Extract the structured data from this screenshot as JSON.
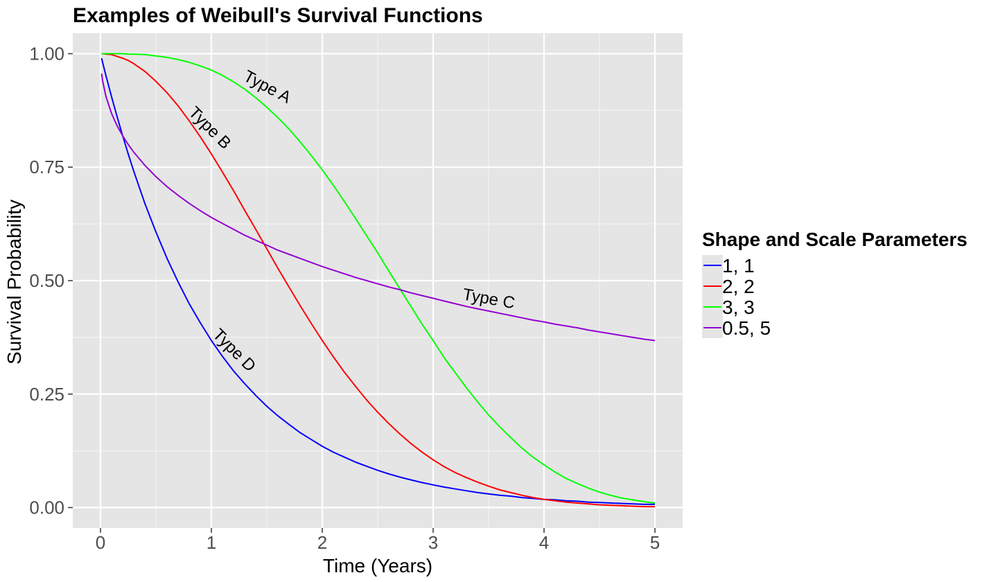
{
  "chart_data": {
    "type": "line",
    "title": "Examples of Weibull's Survival Functions",
    "xlabel": "Time (Years)",
    "ylabel": "Survival Probability",
    "xlim": [
      -0.25,
      5.25
    ],
    "ylim": [
      -0.045,
      1.045
    ],
    "x_ticks": [
      0,
      1,
      2,
      3,
      4,
      5
    ],
    "x_tick_labels": [
      "0",
      "1",
      "2",
      "3",
      "4",
      "5"
    ],
    "y_ticks": [
      0,
      0.25,
      0.5,
      0.75,
      1
    ],
    "y_tick_labels": [
      "0.00",
      "0.25",
      "0.50",
      "0.75",
      "1.00"
    ],
    "grid": true,
    "background": "#e5e5e5",
    "legend": {
      "title": "Shape and Scale Parameters",
      "placement": "right"
    },
    "x": [
      0.01,
      0.02,
      0.05,
      0.1,
      0.15,
      0.2,
      0.25,
      0.3,
      0.4,
      0.5,
      0.6,
      0.7,
      0.8,
      0.9,
      1.0,
      1.1,
      1.2,
      1.3,
      1.4,
      1.5,
      1.6,
      1.7,
      1.8,
      1.9,
      2.0,
      2.1,
      2.2,
      2.3,
      2.4,
      2.5,
      2.6,
      2.7,
      2.8,
      2.9,
      3.0,
      3.1,
      3.2,
      3.3,
      3.4,
      3.5,
      3.6,
      3.7,
      3.8,
      3.9,
      4.0,
      4.1,
      4.2,
      4.3,
      4.4,
      4.5,
      4.6,
      4.7,
      4.8,
      4.9,
      5.0
    ],
    "series": [
      {
        "name": "1, 1",
        "color": "#0000ff",
        "values": [
          0.99,
          0.98,
          0.951,
          0.905,
          0.861,
          0.819,
          0.779,
          0.741,
          0.67,
          0.607,
          0.549,
          0.497,
          0.449,
          0.407,
          0.368,
          0.333,
          0.301,
          0.273,
          0.247,
          0.223,
          0.202,
          0.183,
          0.165,
          0.15,
          0.135,
          0.122,
          0.111,
          0.1,
          0.091,
          0.082,
          0.074,
          0.067,
          0.061,
          0.055,
          0.05,
          0.045,
          0.041,
          0.037,
          0.033,
          0.03,
          0.027,
          0.025,
          0.022,
          0.02,
          0.018,
          0.017,
          0.015,
          0.014,
          0.012,
          0.011,
          0.01,
          0.009,
          0.008,
          0.007,
          0.007
        ]
      },
      {
        "name": "2, 2",
        "color": "#ff0000",
        "values": [
          1.0,
          1.0,
          0.999,
          0.998,
          0.994,
          0.99,
          0.985,
          0.978,
          0.961,
          0.939,
          0.914,
          0.885,
          0.852,
          0.817,
          0.779,
          0.739,
          0.698,
          0.655,
          0.613,
          0.57,
          0.527,
          0.486,
          0.445,
          0.406,
          0.368,
          0.332,
          0.298,
          0.267,
          0.237,
          0.21,
          0.185,
          0.162,
          0.141,
          0.122,
          0.105,
          0.09,
          0.077,
          0.066,
          0.056,
          0.047,
          0.039,
          0.033,
          0.027,
          0.022,
          0.018,
          0.015,
          0.012,
          0.01,
          0.008,
          0.006,
          0.005,
          0.004,
          0.003,
          0.002,
          0.002
        ]
      },
      {
        "name": "3, 3",
        "color": "#00ff00",
        "values": [
          1.0,
          1.0,
          1.0,
          1.0,
          1.0,
          1.0,
          0.999,
          0.999,
          0.998,
          0.995,
          0.992,
          0.987,
          0.981,
          0.973,
          0.964,
          0.952,
          0.938,
          0.922,
          0.903,
          0.882,
          0.859,
          0.834,
          0.806,
          0.776,
          0.744,
          0.71,
          0.674,
          0.637,
          0.599,
          0.561,
          0.521,
          0.482,
          0.443,
          0.404,
          0.368,
          0.33,
          0.297,
          0.264,
          0.233,
          0.204,
          0.178,
          0.154,
          0.131,
          0.111,
          0.094,
          0.078,
          0.064,
          0.053,
          0.043,
          0.034,
          0.027,
          0.021,
          0.017,
          0.013,
          0.01
        ]
      },
      {
        "name": "0.5, 5",
        "color": "#9400d3",
        "values": [
          0.956,
          0.939,
          0.905,
          0.868,
          0.841,
          0.819,
          0.8,
          0.783,
          0.754,
          0.729,
          0.707,
          0.688,
          0.67,
          0.654,
          0.639,
          0.626,
          0.613,
          0.6,
          0.589,
          0.578,
          0.567,
          0.558,
          0.549,
          0.54,
          0.531,
          0.523,
          0.515,
          0.507,
          0.5,
          0.493,
          0.486,
          0.48,
          0.473,
          0.467,
          0.461,
          0.455,
          0.449,
          0.443,
          0.438,
          0.433,
          0.428,
          0.423,
          0.418,
          0.413,
          0.409,
          0.404,
          0.4,
          0.396,
          0.391,
          0.387,
          0.383,
          0.379,
          0.375,
          0.371,
          0.368
        ]
      }
    ],
    "annotations": [
      {
        "text": "Type A",
        "x": 1.5,
        "y": 0.925,
        "angle": 28
      },
      {
        "text": "Type B",
        "x": 0.98,
        "y": 0.835,
        "angle": 45
      },
      {
        "text": "Type C",
        "x": 3.5,
        "y": 0.458,
        "angle": 10
      },
      {
        "text": "Type D",
        "x": 1.2,
        "y": 0.345,
        "angle": 45
      }
    ]
  }
}
